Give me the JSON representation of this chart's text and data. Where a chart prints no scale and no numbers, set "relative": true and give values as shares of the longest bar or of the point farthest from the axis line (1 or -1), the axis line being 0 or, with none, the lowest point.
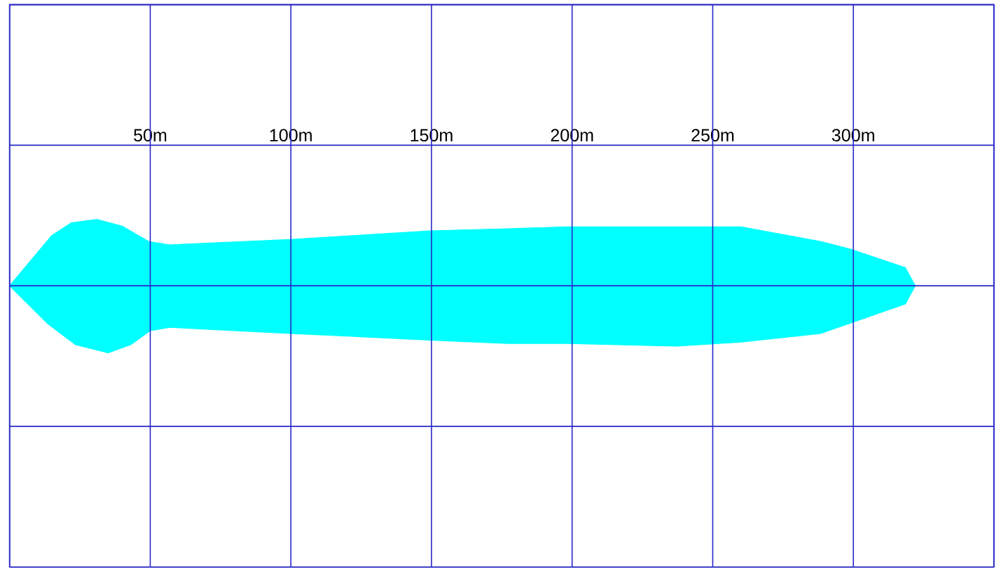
{
  "chart_data": {
    "type": "area",
    "relative": true,
    "xlim": [
      0,
      350
    ],
    "xticks": [
      {
        "value": 0,
        "label": null
      },
      {
        "value": 50,
        "label": "50m"
      },
      {
        "value": 100,
        "label": "100m"
      },
      {
        "value": 150,
        "label": "150m"
      },
      {
        "value": 200,
        "label": "200m"
      },
      {
        "value": 250,
        "label": "250m"
      },
      {
        "value": 300,
        "label": "300m"
      },
      {
        "value": 350,
        "label": null
      }
    ],
    "grid": true,
    "tick_labels": "x",
    "series": [
      {
        "color": "#00ffff",
        "x": [
          0,
          15,
          22,
          31,
          40,
          49.5,
          57,
          99.5,
          149.5,
          177,
          198.5,
          260,
          288.5,
          299.5,
          318.5,
          322
        ],
        "values": [
          0,
          0.75,
          0.94,
          0.99,
          0.89,
          0.66,
          0.61,
          0.69,
          0.82,
          0.85,
          0.88,
          0.88,
          0.66,
          0.54,
          0.27,
          0
        ]
      },
      {
        "color": "#00ffff",
        "x": [
          0,
          13.7,
          23.5,
          35,
          43,
          50,
          57,
          99.5,
          149.5,
          177,
          198.5,
          237,
          260,
          288.5,
          299.5,
          318.5,
          322
        ],
        "values": [
          0,
          -0.57,
          -0.88,
          -1,
          -0.88,
          -0.67,
          -0.62,
          -0.71,
          -0.81,
          -0.86,
          -0.86,
          -0.9,
          -0.84,
          -0.71,
          -0.55,
          -0.27,
          0
        ]
      }
    ]
  }
}
